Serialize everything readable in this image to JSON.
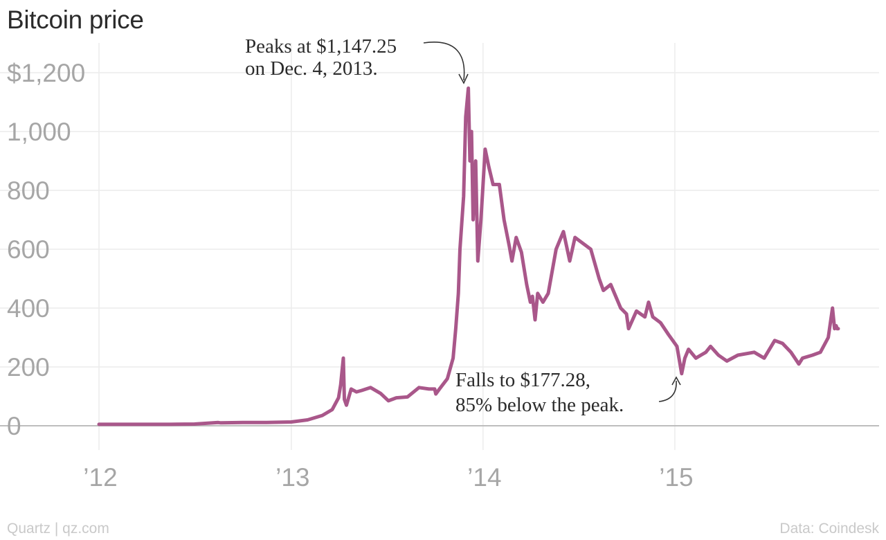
{
  "chart_data": {
    "type": "line",
    "title": "Bitcoin price",
    "xlabel": "",
    "ylabel": "",
    "y_tick_labels": [
      "0",
      "200",
      "400",
      "600",
      "800",
      "1,000",
      "$1,200"
    ],
    "y_ticks": [
      0,
      200,
      400,
      600,
      800,
      1000,
      1200
    ],
    "ylim": [
      0,
      1200
    ],
    "x_ticks": [
      {
        "value": "2012-01-01",
        "label": "’12"
      },
      {
        "value": "2013-01-01",
        "label": "’13"
      },
      {
        "value": "2014-01-01",
        "label": "’14"
      },
      {
        "value": "2015-01-01",
        "label": "’15"
      }
    ],
    "xlim": [
      "2012-01-01",
      "2015-11-08"
    ],
    "grid": true,
    "line_color": "#a9578a",
    "series": [
      {
        "x": [
          "2012-01-01",
          "2012-02-15",
          "2012-04-01",
          "2012-05-15",
          "2012-07-01",
          "2012-08-15",
          "2012-08-20",
          "2012-10-01",
          "2012-11-15",
          "2013-01-01",
          "2013-02-01",
          "2013-03-01",
          "2013-03-20",
          "2013-04-01",
          "2013-04-05",
          "2013-04-10",
          "2013-04-12",
          "2013-04-16",
          "2013-04-25",
          "2013-05-05",
          "2013-05-15",
          "2013-06-01",
          "2013-06-20",
          "2013-07-05",
          "2013-07-20",
          "2013-08-10",
          "2013-09-01",
          "2013-09-20",
          "2013-10-01",
          "2013-10-03",
          "2013-10-10",
          "2013-10-25",
          "2013-11-05",
          "2013-11-10",
          "2013-11-15",
          "2013-11-18",
          "2013-11-25",
          "2013-11-29",
          "2013-12-04",
          "2013-12-07",
          "2013-12-10",
          "2013-12-13",
          "2013-12-18",
          "2013-12-22",
          "2013-12-28",
          "2014-01-05",
          "2014-01-12",
          "2014-01-20",
          "2014-02-01",
          "2014-02-10",
          "2014-02-20",
          "2014-02-25",
          "2014-03-05",
          "2014-03-15",
          "2014-03-25",
          "2014-04-01",
          "2014-04-05",
          "2014-04-10",
          "2014-04-15",
          "2014-04-25",
          "2014-05-05",
          "2014-05-20",
          "2014-06-03",
          "2014-06-15",
          "2014-06-25",
          "2014-07-10",
          "2014-07-25",
          "2014-08-10",
          "2014-08-18",
          "2014-09-01",
          "2014-09-20",
          "2014-10-01",
          "2014-10-05",
          "2014-10-20",
          "2014-11-05",
          "2014-11-12",
          "2014-11-20",
          "2014-12-05",
          "2014-12-20",
          "2015-01-05",
          "2015-01-14",
          "2015-01-20",
          "2015-01-27",
          "2015-02-10",
          "2015-03-01",
          "2015-03-10",
          "2015-03-25",
          "2015-04-10",
          "2015-05-01",
          "2015-06-01",
          "2015-06-20",
          "2015-07-10",
          "2015-07-25",
          "2015-08-10",
          "2015-08-25",
          "2015-09-01",
          "2015-09-20",
          "2015-10-05",
          "2015-10-20",
          "2015-10-28",
          "2015-11-01",
          "2015-11-04",
          "2015-11-06",
          "2015-11-08"
        ],
        "values": [
          5,
          5,
          5,
          5,
          6,
          11,
          10,
          11,
          11,
          13,
          20,
          35,
          55,
          95,
          140,
          230,
          90,
          70,
          125,
          115,
          120,
          130,
          110,
          85,
          95,
          98,
          130,
          125,
          125,
          108,
          125,
          160,
          230,
          330,
          450,
          600,
          780,
          1050,
          1147.25,
          900,
          1000,
          700,
          900,
          560,
          700,
          940,
          880,
          820,
          820,
          700,
          610,
          560,
          640,
          590,
          480,
          420,
          440,
          360,
          450,
          420,
          450,
          600,
          660,
          560,
          640,
          620,
          600,
          500,
          460,
          480,
          400,
          380,
          330,
          390,
          370,
          420,
          370,
          350,
          310,
          270,
          177.28,
          230,
          260,
          230,
          250,
          270,
          240,
          220,
          240,
          250,
          230,
          290,
          280,
          250,
          210,
          230,
          240,
          250,
          300,
          400,
          330,
          340,
          330,
          330
        ]
      }
    ],
    "annotations": [
      {
        "lines": [
          "Peaks at $1,147.25",
          "on  Dec. 4, 2013."
        ]
      },
      {
        "lines": [
          "Falls to $177.28,",
          "85% below the peak."
        ]
      }
    ]
  },
  "footer": {
    "source_left": "Quartz | qz.com",
    "source_right": "Data: Coindesk"
  }
}
